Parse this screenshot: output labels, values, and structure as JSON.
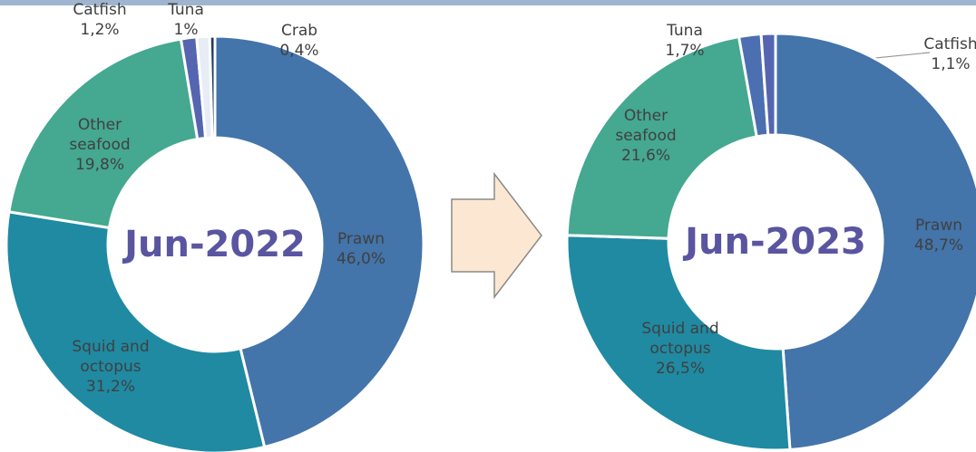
{
  "chart_data": [
    {
      "type": "pie",
      "donut": true,
      "title": "Jun-2022",
      "categories": [
        "Prawn",
        "Squid and octopus",
        "Other seafood",
        "Catfish",
        "Tuna",
        "Crab"
      ],
      "values": [
        46.0,
        31.2,
        19.8,
        1.2,
        1,
        0.4
      ],
      "value_labels": [
        "46,0%",
        "31,2%",
        "19,8%",
        "1,2%",
        "1%",
        "0,4%"
      ],
      "colors": [
        "#4374aa",
        "#1f8aa2",
        "#45a891",
        "#5565b0",
        "#e8ecf4",
        "#1f3b5e"
      ]
    },
    {
      "type": "pie",
      "donut": true,
      "title": "Jun-2023",
      "categories": [
        "Prawn",
        "Squid and octopus",
        "Other seafood",
        "Tuna",
        "Catfish"
      ],
      "values": [
        48.7,
        26.5,
        21.6,
        1.7,
        1.1
      ],
      "value_labels": [
        "48,7%",
        "26,5%",
        "21,6%",
        "1,7%",
        "1,1%"
      ],
      "colors": [
        "#4374aa",
        "#1f8aa2",
        "#45a891",
        "#4b6fb0",
        "#5565b0"
      ]
    }
  ]
}
